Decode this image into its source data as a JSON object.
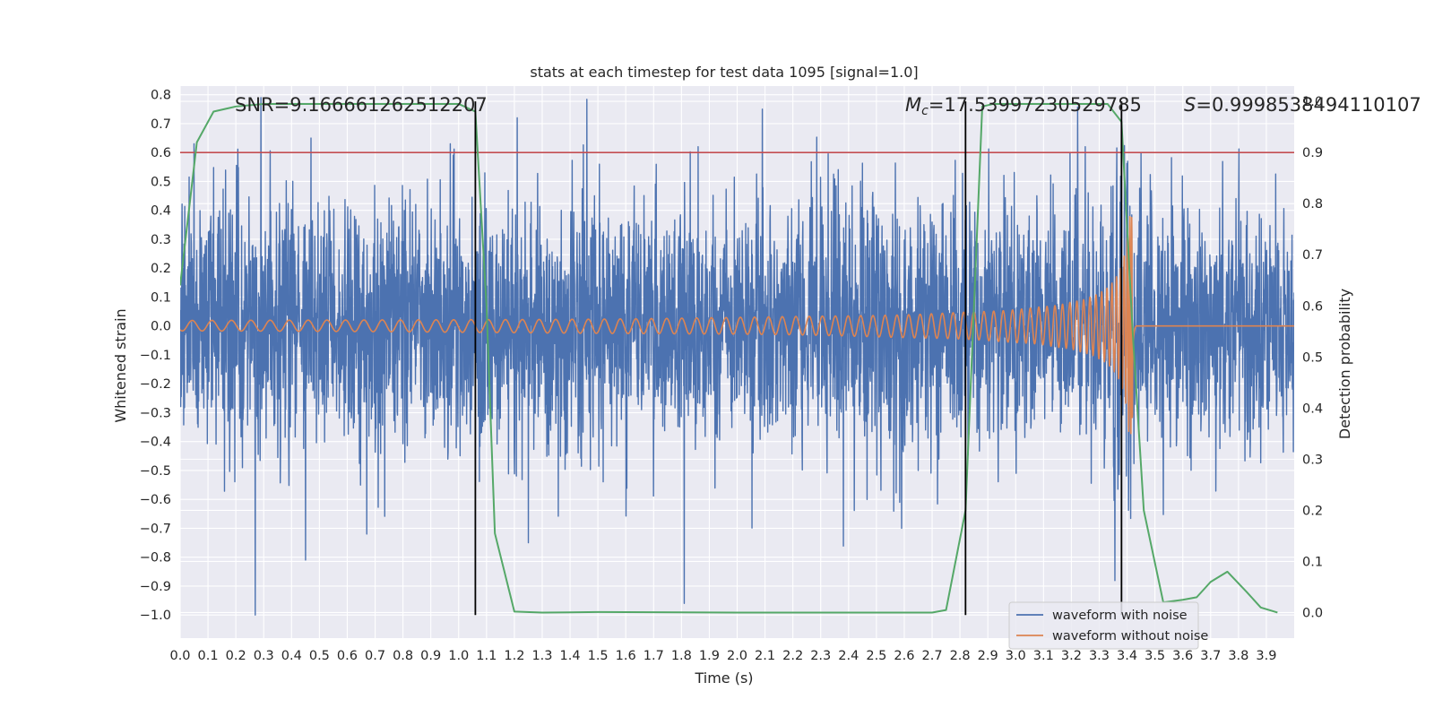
{
  "chart_data": {
    "type": "line",
    "title": "stats at each timestep for test data 1095 [signal=1.0]",
    "xlabel": "Time (s)",
    "ylabel": "Whitened strain",
    "y2label": "Detection probability",
    "xlim": [
      0.0,
      4.0
    ],
    "ylim": [
      -1.08,
      0.83
    ],
    "y2lim": [
      -0.05,
      1.03
    ],
    "grid": true,
    "x_ticks": [
      "0.0",
      "0.1",
      "0.2",
      "0.3",
      "0.4",
      "0.5",
      "0.6",
      "0.7",
      "0.8",
      "0.9",
      "1.0",
      "1.1",
      "1.2",
      "1.3",
      "1.4",
      "1.5",
      "1.6",
      "1.7",
      "1.8",
      "1.9",
      "2.0",
      "2.1",
      "2.2",
      "2.3",
      "2.4",
      "2.5",
      "2.6",
      "2.7",
      "2.8",
      "2.9",
      "3.0",
      "3.1",
      "3.2",
      "3.3",
      "3.4",
      "3.5",
      "3.6",
      "3.7",
      "3.8",
      "3.9"
    ],
    "y_ticks": [
      "0.8",
      "0.7",
      "0.6",
      "0.5",
      "0.4",
      "0.3",
      "0.2",
      "0.1",
      "0.0",
      "−0.1",
      "−0.2",
      "−0.3",
      "−0.4",
      "−0.5",
      "−0.6",
      "−0.7",
      "−0.8",
      "−0.9",
      "−1.0"
    ],
    "y2_ticks": [
      "1.0",
      "0.9",
      "0.8",
      "0.7",
      "0.6",
      "0.5",
      "0.4",
      "0.3",
      "0.2",
      "0.1",
      "0.0"
    ],
    "annotations": {
      "snr": "SNR=9.166661262512207",
      "mc_symbol": "M",
      "mc_subscript": "c",
      "mc_value": "=17.53997230529785",
      "s_symbol": "S",
      "s_value": "=0.9998538494110107"
    },
    "threshold_line": {
      "value": 0.9,
      "axis": "right",
      "color": "#c44e52"
    },
    "vertical_lines": [
      1.06,
      2.82,
      3.38
    ],
    "series": [
      {
        "name": "waveform with noise",
        "color": "#4c72b0",
        "kind": "noise",
        "samples": 4096,
        "amplitude_sigma": 0.21,
        "range": [
          -1.0,
          0.79
        ],
        "peaks": [
          [
            0.05,
            0.63
          ],
          [
            0.27,
            -1.0
          ],
          [
            0.29,
            0.79
          ],
          [
            0.45,
            -0.81
          ],
          [
            0.47,
            0.65
          ],
          [
            0.67,
            -0.72
          ],
          [
            0.97,
            0.63
          ],
          [
            1.21,
            0.72
          ],
          [
            1.25,
            -0.75
          ],
          [
            1.81,
            -0.96
          ],
          [
            1.86,
            0.62
          ],
          [
            2.09,
            0.75
          ],
          [
            2.59,
            -0.7
          ],
          [
            3.25,
            0.62
          ],
          [
            3.45,
            0.6
          ]
        ]
      },
      {
        "name": "waveform without noise",
        "color": "#dd8452",
        "kind": "chirp",
        "t_merger": 3.42,
        "amplitude_start": 0.018,
        "amplitude_peak": 0.38,
        "freq_start_hz": 14.0
      },
      {
        "name": "Detection probability",
        "color": "#55a868",
        "axis": "right",
        "x": [
          0.0,
          0.06,
          0.12,
          0.2,
          0.3,
          0.5,
          0.8,
          1.0,
          1.06,
          1.1,
          1.13,
          1.2,
          1.3,
          1.5,
          2.0,
          2.5,
          2.7,
          2.75,
          2.82,
          2.88,
          2.92,
          3.0,
          3.2,
          3.33,
          3.38,
          3.42,
          3.46,
          3.53,
          3.6,
          3.65,
          3.7,
          3.76,
          3.83,
          3.88,
          3.94
        ],
        "y": [
          0.64,
          0.92,
          0.98,
          0.99,
          0.995,
          0.995,
          0.995,
          0.995,
          0.98,
          0.6,
          0.155,
          0.002,
          0.0,
          0.001,
          0.0,
          0.0,
          0.0,
          0.005,
          0.2,
          0.99,
          0.995,
          0.995,
          0.995,
          0.995,
          0.96,
          0.55,
          0.2,
          0.02,
          0.025,
          0.03,
          0.06,
          0.08,
          0.04,
          0.01,
          0.0
        ]
      }
    ],
    "legend": {
      "placement": "lower-right",
      "entries": [
        {
          "label": "waveform with noise",
          "color": "#4c72b0"
        },
        {
          "label": "waveform without noise",
          "color": "#dd8452"
        }
      ]
    }
  }
}
